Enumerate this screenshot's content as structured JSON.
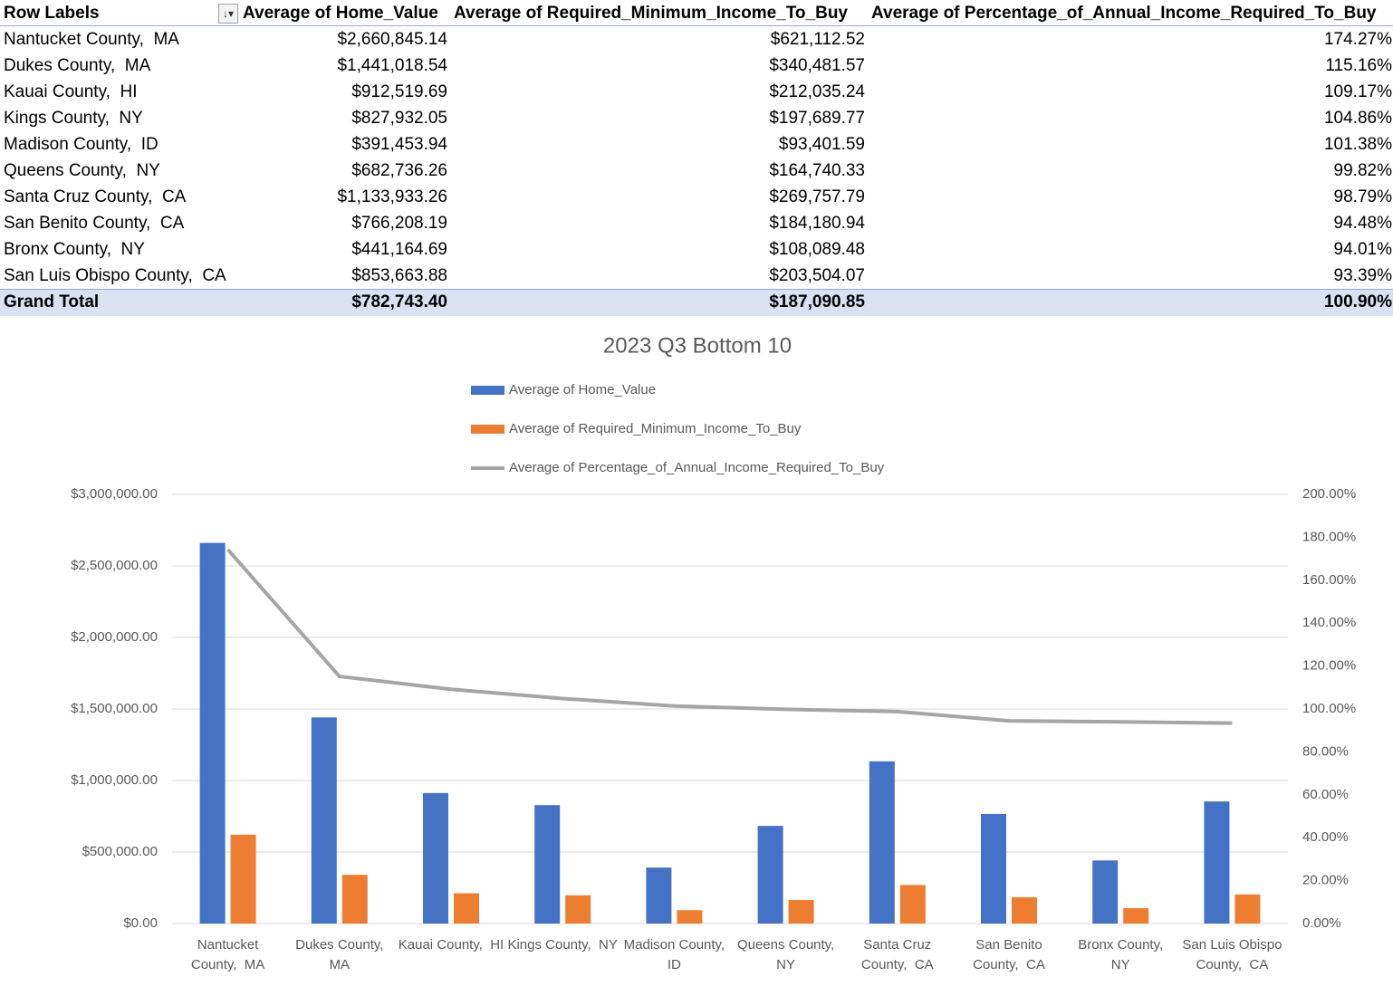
{
  "table": {
    "header": [
      "Row Labels",
      "Average of Home_Value",
      "Average of Required_Minimum_Income_To_Buy",
      "Average of Percentage_of_Annual_Income_Required_To_Buy"
    ],
    "rows": [
      [
        "Nantucket County,  MA",
        "$2,660,845.14",
        "$621,112.52",
        "174.27%"
      ],
      [
        "Dukes County,  MA",
        "$1,441,018.54",
        "$340,481.57",
        "115.16%"
      ],
      [
        "Kauai County,  HI",
        "$912,519.69",
        "$212,035.24",
        "109.17%"
      ],
      [
        "Kings County,  NY",
        "$827,932.05",
        "$197,689.77",
        "104.86%"
      ],
      [
        "Madison County,  ID",
        "$391,453.94",
        "$93,401.59",
        "101.38%"
      ],
      [
        "Queens County,  NY",
        "$682,736.26",
        "$164,740.33",
        "99.82%"
      ],
      [
        "Santa Cruz County,  CA",
        "$1,133,933.26",
        "$269,757.79",
        "98.79%"
      ],
      [
        "San Benito County,  CA",
        "$766,208.19",
        "$184,180.94",
        "94.48%"
      ],
      [
        "Bronx County,  NY",
        "$441,164.69",
        "$108,089.48",
        "94.01%"
      ],
      [
        "San Luis Obispo County,  CA",
        "$853,663.88",
        "$203,504.07",
        "93.39%"
      ]
    ],
    "grand_total": [
      "Grand Total",
      "$782,743.40",
      "$187,090.85",
      "100.90%"
    ]
  },
  "chart_data": {
    "type": "bar",
    "title": "2023 Q3 Bottom 10",
    "categories": [
      "Nantucket County,  MA",
      "Dukes County,  MA",
      "Kauai County,  HI",
      "Kings County,  NY",
      "Madison County,  ID",
      "Queens County,  NY",
      "Santa Cruz County,  CA",
      "San Benito County,  CA",
      "Bronx County,  NY",
      "San Luis Obispo County,  CA"
    ],
    "series": [
      {
        "name": "Average of Home_Value",
        "color": "#4472c4",
        "type": "bar",
        "values": [
          2660845.14,
          1441018.54,
          912519.69,
          827932.05,
          391453.94,
          682736.26,
          1133933.26,
          766208.19,
          441164.69,
          853663.88
        ]
      },
      {
        "name": "Average of Required_Minimum_Income_To_Buy",
        "color": "#ed7d31",
        "type": "bar",
        "values": [
          621112.52,
          340481.57,
          212035.24,
          197689.77,
          93401.59,
          164740.33,
          269757.79,
          184180.94,
          108089.48,
          203504.07
        ]
      },
      {
        "name": "Average of Percentage_of_Annual_Income_Required_To_Buy",
        "color": "#a5a5a5",
        "type": "line",
        "axis": "y2",
        "values": [
          174.27,
          115.16,
          109.17,
          104.86,
          101.38,
          99.82,
          98.79,
          94.48,
          94.01,
          93.39
        ]
      }
    ],
    "ylim": [
      0,
      3000000
    ],
    "yticks": [
      {
        "value": 0,
        "label": "$0.00"
      },
      {
        "value": 500000,
        "label": "$500,000.00"
      },
      {
        "value": 1000000,
        "label": "$1,000,000.00"
      },
      {
        "value": 1500000,
        "label": "$1,500,000.00"
      },
      {
        "value": 2000000,
        "label": "$2,000,000.00"
      },
      {
        "value": 2500000,
        "label": "$2,500,000.00"
      },
      {
        "value": 3000000,
        "label": "$3,000,000.00"
      }
    ],
    "y2lim": [
      0,
      200
    ],
    "y2ticks": [
      {
        "value": 0,
        "label": "0.00%"
      },
      {
        "value": 20,
        "label": "20.00%"
      },
      {
        "value": 40,
        "label": "40.00%"
      },
      {
        "value": 60,
        "label": "60.00%"
      },
      {
        "value": 80,
        "label": "80.00%"
      },
      {
        "value": 100,
        "label": "100.00%"
      },
      {
        "value": 120,
        "label": "120.00%"
      },
      {
        "value": 140,
        "label": "140.00%"
      },
      {
        "value": 160,
        "label": "160.00%"
      },
      {
        "value": 180,
        "label": "180.00%"
      },
      {
        "value": 200,
        "label": "200.00%"
      }
    ],
    "grid": true,
    "legend": "top"
  }
}
